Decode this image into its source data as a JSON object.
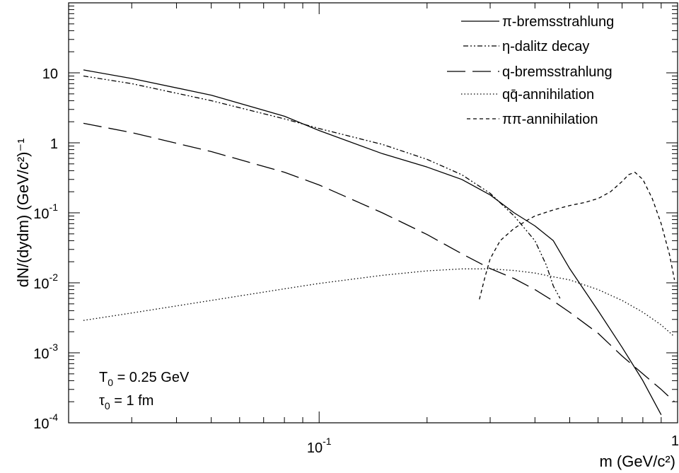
{
  "chart_data": {
    "type": "line",
    "title": "",
    "xlabel": "m (GeV/c²)",
    "ylabel": "dN/(dydm) (GeV/c²)⁻¹",
    "xscale": "log",
    "yscale": "log",
    "xlim": [
      0.02,
      1.0
    ],
    "ylim": [
      0.0001,
      100
    ],
    "grid": false,
    "legend_position": "top-right",
    "x_tick_labels": [
      {
        "value": 0.1,
        "base": "10",
        "exp": "-1"
      },
      {
        "value": 1,
        "base": "1",
        "exp": ""
      }
    ],
    "y_tick_labels": [
      {
        "value": 10,
        "base": "10",
        "exp": ""
      },
      {
        "value": 1,
        "base": "1",
        "exp": ""
      },
      {
        "value": 0.1,
        "base": "10",
        "exp": "-1"
      },
      {
        "value": 0.01,
        "base": "10",
        "exp": "-2"
      },
      {
        "value": 0.001,
        "base": "10",
        "exp": "-3"
      },
      {
        "value": 0.0001,
        "base": "10",
        "exp": "-4"
      }
    ],
    "annotations": [
      {
        "main": "T",
        "sub": "0",
        "rest": " = 0.25 GeV"
      },
      {
        "main": "τ",
        "sub": "0",
        "rest": " = 1 fm"
      }
    ],
    "series": [
      {
        "name": "π-bremsstrahlung",
        "style": "solid",
        "x": [
          0.022,
          0.03,
          0.05,
          0.08,
          0.1,
          0.15,
          0.2,
          0.25,
          0.3,
          0.35,
          0.4,
          0.45,
          0.5,
          0.6,
          0.7,
          0.8,
          0.9
        ],
        "y": [
          11,
          8.3,
          4.8,
          2.4,
          1.5,
          0.7,
          0.45,
          0.3,
          0.18,
          0.1,
          0.065,
          0.04,
          0.016,
          0.004,
          0.0012,
          0.0004,
          0.00013
        ]
      },
      {
        "name": "η-dalitz decay",
        "style": "dashdotdot",
        "x": [
          0.022,
          0.03,
          0.05,
          0.08,
          0.1,
          0.15,
          0.2,
          0.25,
          0.3,
          0.35,
          0.4,
          0.43,
          0.45,
          0.47
        ],
        "y": [
          9,
          7,
          4,
          2.2,
          1.6,
          0.95,
          0.58,
          0.35,
          0.19,
          0.09,
          0.04,
          0.018,
          0.009,
          0.006
        ]
      },
      {
        "name": "q-bremsstrahlung",
        "style": "longdash",
        "x": [
          0.022,
          0.03,
          0.05,
          0.08,
          0.1,
          0.15,
          0.2,
          0.25,
          0.3,
          0.35,
          0.4,
          0.45,
          0.5,
          0.6,
          0.7,
          0.8,
          0.9,
          0.98
        ],
        "y": [
          1.9,
          1.4,
          0.75,
          0.38,
          0.25,
          0.1,
          0.049,
          0.026,
          0.016,
          0.0115,
          0.008,
          0.0055,
          0.0038,
          0.0019,
          0.0009,
          0.0005,
          0.0003,
          0.0002
        ]
      },
      {
        "name": "qq̄-annihilation",
        "style": "dotted",
        "x": [
          0.022,
          0.03,
          0.05,
          0.08,
          0.1,
          0.15,
          0.2,
          0.25,
          0.3,
          0.35,
          0.4,
          0.45,
          0.5,
          0.6,
          0.7,
          0.8,
          0.9,
          0.98
        ],
        "y": [
          0.0029,
          0.0037,
          0.0056,
          0.0082,
          0.0098,
          0.0128,
          0.0148,
          0.0158,
          0.0158,
          0.015,
          0.0138,
          0.0122,
          0.011,
          0.008,
          0.0056,
          0.0038,
          0.0025,
          0.0017
        ]
      },
      {
        "name": "ππ-annihilation",
        "style": "shortdash",
        "x": [
          0.28,
          0.29,
          0.3,
          0.32,
          0.35,
          0.38,
          0.4,
          0.45,
          0.5,
          0.55,
          0.6,
          0.65,
          0.7,
          0.73,
          0.76,
          0.8,
          0.85,
          0.9,
          0.95,
          0.98
        ],
        "y": [
          0.0058,
          0.012,
          0.022,
          0.04,
          0.06,
          0.078,
          0.09,
          0.11,
          0.127,
          0.14,
          0.16,
          0.2,
          0.28,
          0.35,
          0.38,
          0.3,
          0.16,
          0.07,
          0.025,
          0.011
        ]
      }
    ]
  }
}
